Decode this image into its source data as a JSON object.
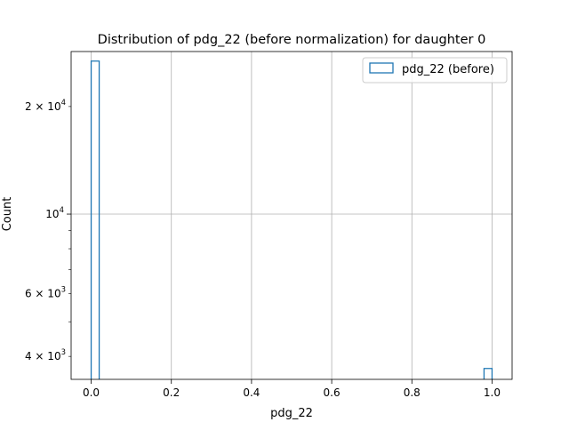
{
  "chart_data": {
    "type": "bar",
    "title": "Distribution of pdg_22 (before normalization) for daughter 0",
    "xlabel": "pdg_22",
    "ylabel": "Count",
    "xlim": [
      -0.05,
      1.05
    ],
    "ylim": [
      3450,
      28500
    ],
    "yscale": "log",
    "grid": true,
    "legend_position": "top-right",
    "x_ticks": [
      {
        "value": 0.0,
        "label": "0.0"
      },
      {
        "value": 0.2,
        "label": "0.2"
      },
      {
        "value": 0.4,
        "label": "0.4"
      },
      {
        "value": 0.6,
        "label": "0.6"
      },
      {
        "value": 0.8,
        "label": "0.8"
      },
      {
        "value": 1.0,
        "label": "1.0"
      }
    ],
    "y_major_ticks": [
      {
        "value": 10000,
        "base": "10",
        "exp": "4"
      }
    ],
    "y_minor_ticks": [
      {
        "value": 4000,
        "mant": "4 × 10",
        "exp": "3"
      },
      {
        "value": 6000,
        "mant": "6 × 10",
        "exp": "3"
      },
      {
        "value": 20000,
        "mant": "2 × 10",
        "exp": "4"
      }
    ],
    "y_unlabeled_minor": [
      5000,
      7000,
      8000,
      9000
    ],
    "series": [
      {
        "name": "pdg_22 (before)",
        "color": "#1f77b4",
        "histtype": "step",
        "bins": [
          {
            "x0": 0.0,
            "x1": 0.02,
            "count": 26800
          },
          {
            "x0": 0.98,
            "x1": 1.0,
            "count": 3700
          }
        ]
      }
    ]
  }
}
